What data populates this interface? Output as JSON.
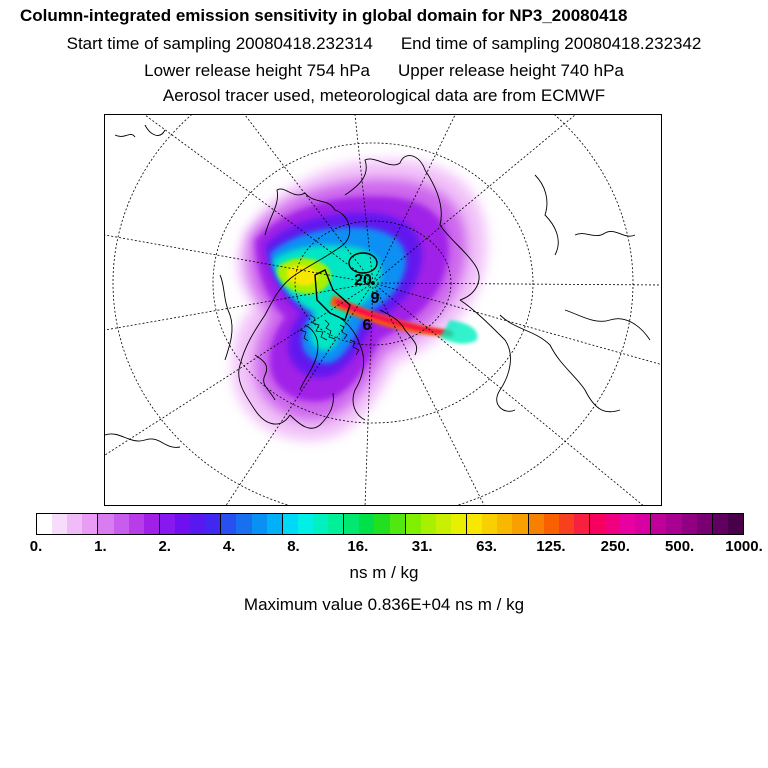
{
  "header": {
    "title": "Column-integrated emission sensitivity in global domain for NP3_20080418",
    "start_label": "Start time of sampling 20080418.232314",
    "end_label": "End time of sampling 20080418.232342",
    "lower_label": "Lower release height  754 hPa",
    "upper_label": "Upper release height  740 hPa",
    "tracer_label": "Aerosol tracer used, meteorological data are from ECMWF"
  },
  "map": {
    "labels": [
      "20",
      "9",
      "6"
    ]
  },
  "colorbar": {
    "ticks": [
      "0.",
      "1.",
      "2.",
      "4.",
      "8.",
      "16.",
      "31.",
      "63.",
      "125.",
      "250.",
      "500.",
      "1000."
    ],
    "colors": [
      "#ffffff",
      "#f8dcfc",
      "#f0bcf8",
      "#e89cf4",
      "#d87cf0",
      "#c85cec",
      "#b83ce8",
      "#a020e8",
      "#8818f0",
      "#7010f0",
      "#5818f0",
      "#4028f0",
      "#2850f0",
      "#1870f0",
      "#0890f4",
      "#00b0f8",
      "#00d8f8",
      "#00f0e8",
      "#00f0c0",
      "#00f098",
      "#00e870",
      "#00e048",
      "#20e020",
      "#50e810",
      "#80f000",
      "#a8f000",
      "#c8f000",
      "#e8f000",
      "#f8e800",
      "#f8d000",
      "#f8b800",
      "#f8a000",
      "#f88000",
      "#f86000",
      "#f84020",
      "#f82040",
      "#f80060",
      "#f00080",
      "#e800a0",
      "#d800a0",
      "#c00098",
      "#a80090",
      "#900080",
      "#780070",
      "#600060",
      "#480048"
    ],
    "units": "ns m / kg"
  },
  "footer": {
    "max_value": "Maximum value  0.836E+04 ns m / kg"
  }
}
